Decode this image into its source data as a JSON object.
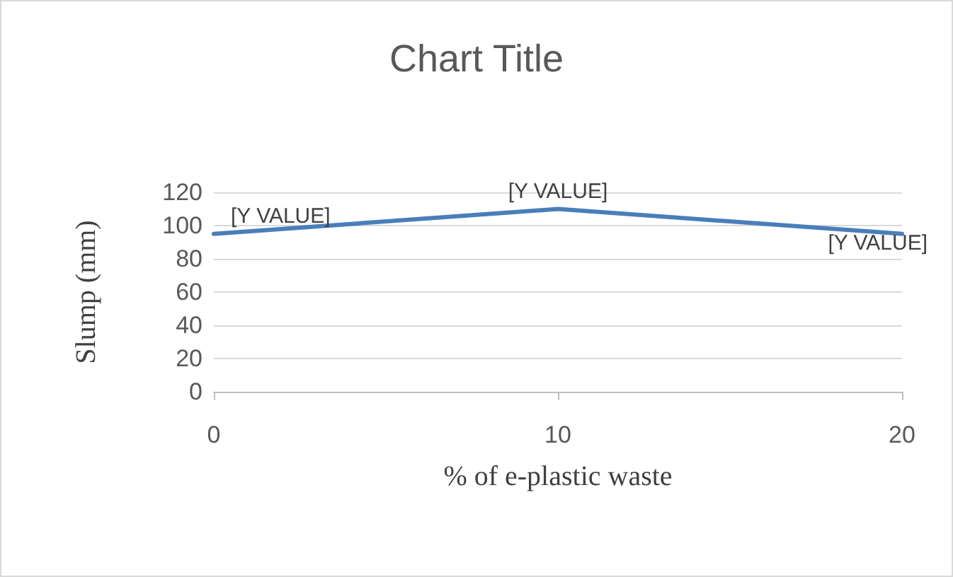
{
  "chart_data": {
    "type": "line",
    "title": "Chart Title",
    "xlabel": "% of e-plastic waste",
    "ylabel": "Slump (mm)",
    "x": [
      0,
      10,
      20
    ],
    "series": [
      {
        "color": "#4a7ebb",
        "values": [
          95,
          110,
          95
        ],
        "value_labels": [
          "[Y VALUE]",
          "[Y VALUE]",
          "[Y VALUE]"
        ]
      }
    ],
    "xlim": [
      0,
      20
    ],
    "xticks": [
      0,
      10,
      20
    ],
    "ylim": [
      0,
      120
    ],
    "yticks": [
      0,
      20,
      40,
      60,
      80,
      100,
      120
    ],
    "grid": "y",
    "marker": "none",
    "line_style": "solid"
  }
}
